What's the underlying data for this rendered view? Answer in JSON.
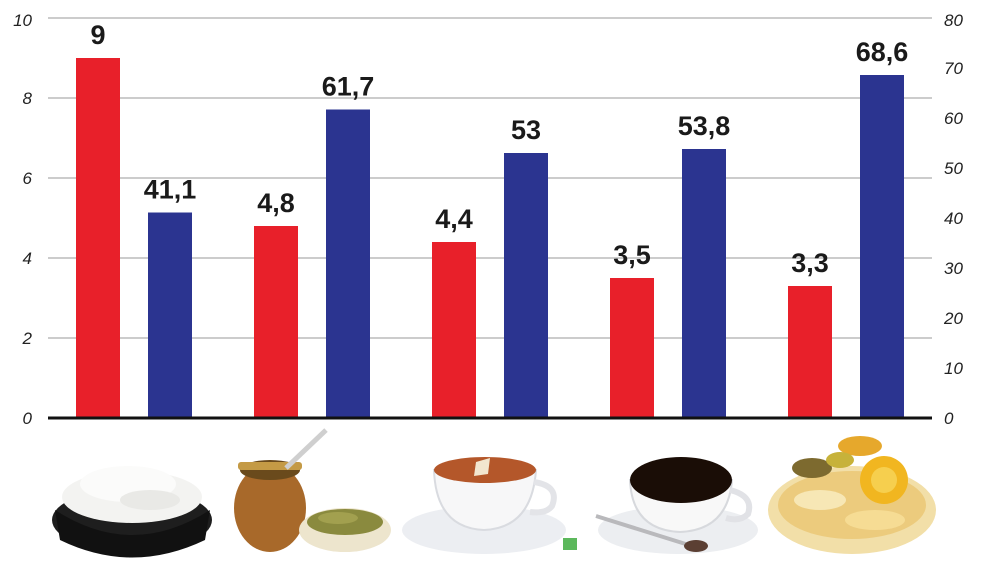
{
  "chart_data": {
    "type": "bar",
    "categories": [
      "rice",
      "yerba mate",
      "tea",
      "coffee",
      "pasta"
    ],
    "series": [
      {
        "axis": "left",
        "color": "#e8202a",
        "values": [
          9,
          4.8,
          4.4,
          3.5,
          3.3
        ],
        "labels": [
          "9",
          "4,8",
          "4,4",
          "3,5",
          "3,3"
        ]
      },
      {
        "axis": "right",
        "color": "#2b3490",
        "values": [
          41.1,
          61.7,
          53,
          53.8,
          68.6
        ],
        "labels": [
          "41,1",
          "61,7",
          "53",
          "53,8",
          "68,6"
        ]
      }
    ],
    "y_left": {
      "range": [
        0,
        10
      ],
      "ticks": [
        "0",
        "2",
        "4",
        "6",
        "8",
        "10"
      ]
    },
    "y_right": {
      "range": [
        0,
        80
      ],
      "ticks": [
        "0",
        "10",
        "20",
        "30",
        "40",
        "50",
        "60",
        "70",
        "80"
      ]
    },
    "grid": true,
    "legend": "none"
  },
  "category_icons": [
    "rice-bowl-icon",
    "yerba-mate-gourd-icon",
    "tea-cup-icon",
    "coffee-cup-icon",
    "pasta-icon"
  ]
}
